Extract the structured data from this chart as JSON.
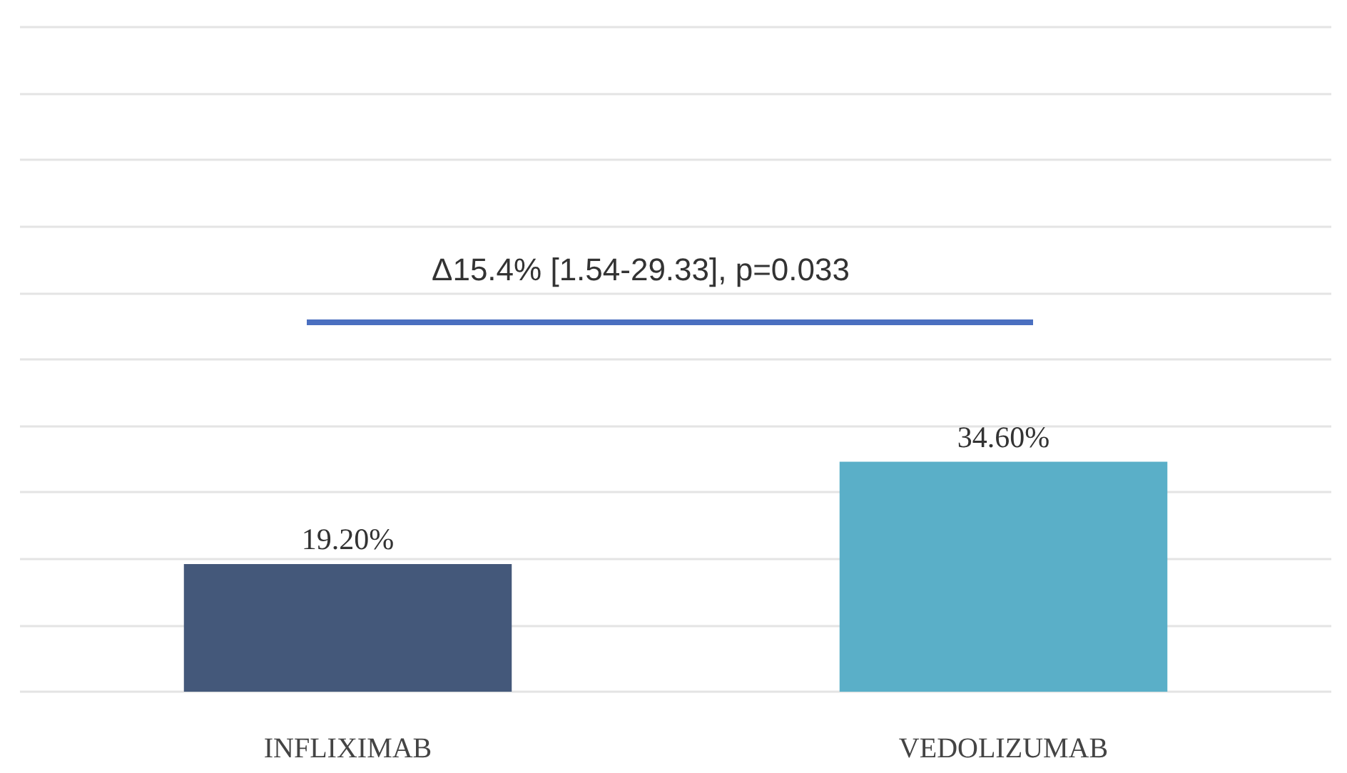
{
  "chart_data": {
    "type": "bar",
    "categories": [
      "INFLIXIMAB",
      "VEDOLIZUMAB"
    ],
    "values": [
      19.2,
      34.6
    ],
    "colors": [
      "#44587a",
      "#5aafc8"
    ],
    "value_labels": [
      "19.20%",
      "34.60%"
    ],
    "ylim": [
      0,
      100
    ],
    "yticks": [
      {
        "value": 0,
        "label": null
      },
      {
        "value": 10,
        "label": null
      },
      {
        "value": 20,
        "label": null
      },
      {
        "value": 30,
        "label": null
      },
      {
        "value": 40,
        "label": null
      },
      {
        "value": 50,
        "label": null
      },
      {
        "value": 60,
        "label": null
      },
      {
        "value": 70,
        "label": null
      },
      {
        "value": 80,
        "label": null
      },
      {
        "value": 90,
        "label": null
      },
      {
        "value": 100,
        "label": null
      }
    ],
    "tick_labels": "x",
    "grid": "y",
    "annotations": [
      "Δ15.4% [1.54-29.33], p=0.033"
    ]
  }
}
